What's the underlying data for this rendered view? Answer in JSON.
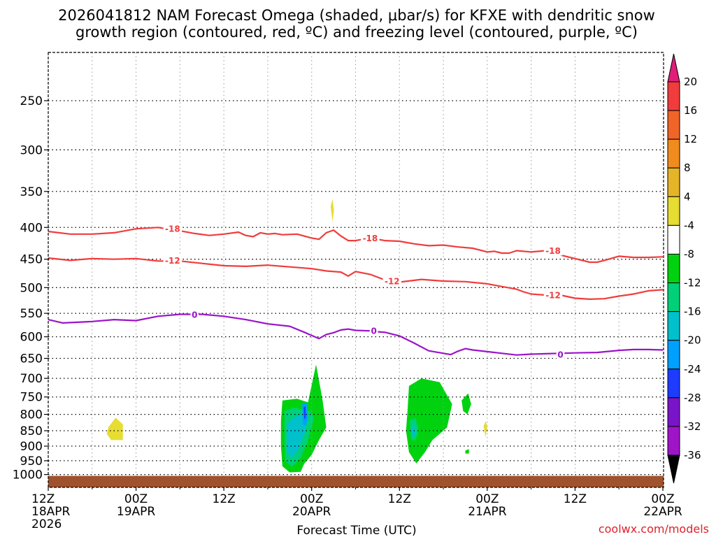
{
  "chart_data": {
    "type": "time-height cross-section",
    "title_line1": "2026041812 NAM Forecast Omega (shaded, μbar/s) for KFXE with dendritic snow",
    "title_line2": "growth region (contoured, red, ºC) and freezing level (contoured, purple, ºC)",
    "xlabel": "Forecast Time (UTC)",
    "credit": "coolwx.com/models",
    "x_ticks": [
      {
        "h": 0,
        "lines": [
          "12Z",
          "18APR",
          "2026"
        ]
      },
      {
        "h": 12,
        "lines": [
          "00Z",
          "19APR"
        ]
      },
      {
        "h": 24,
        "lines": [
          "12Z"
        ]
      },
      {
        "h": 36,
        "lines": [
          "00Z",
          "20APR"
        ]
      },
      {
        "h": 48,
        "lines": [
          "12Z"
        ]
      },
      {
        "h": 60,
        "lines": [
          "00Z",
          "21APR"
        ]
      },
      {
        "h": 72,
        "lines": [
          "12Z"
        ]
      },
      {
        "h": 84,
        "lines": [
          "00Z",
          "22APR"
        ]
      }
    ],
    "x_minor_hours": [
      6,
      18,
      30,
      42,
      54,
      66,
      78
    ],
    "xlim_hours": [
      0,
      84
    ],
    "y_levels_hpa": [
      250,
      300,
      350,
      400,
      450,
      500,
      550,
      600,
      650,
      700,
      750,
      800,
      850,
      900,
      950,
      1000
    ],
    "ylim_hpa": [
      200,
      1020
    ],
    "surface_hpa": 1005,
    "series": [
      {
        "name": "-18C isotherm",
        "label": "-18",
        "color": "#f03c3c",
        "hours": [
          0,
          3,
          6,
          9,
          12,
          15,
          18,
          20,
          22,
          24,
          26,
          27,
          28,
          29,
          30,
          31,
          32,
          34,
          36,
          37,
          38,
          39,
          40,
          41,
          42,
          44,
          45,
          46,
          48,
          50,
          52,
          54,
          56,
          58,
          60,
          61,
          62,
          63,
          64,
          66,
          68,
          69,
          70,
          71,
          72,
          74,
          75,
          76,
          78,
          80,
          82,
          84
        ],
        "hpa": [
          406,
          410,
          410,
          408,
          402,
          400,
          405,
          409,
          412,
          410,
          407,
          412,
          414,
          408,
          410,
          409,
          411,
          410,
          416,
          418,
          408,
          404,
          413,
          420,
          420,
          416,
          418,
          420,
          421,
          425,
          428,
          427,
          430,
          432,
          438,
          437,
          440,
          440,
          436,
          438,
          436,
          440,
          443,
          446,
          449,
          455,
          455,
          452,
          445,
          447,
          447,
          446
        ],
        "label_positions": [
          {
            "h": 17,
            "hpa": 402
          },
          {
            "h": 44,
            "hpa": 416
          },
          {
            "h": 69,
            "hpa": 436
          }
        ]
      },
      {
        "name": "-12C isotherm",
        "label": "-12",
        "color": "#f03c3c",
        "hours": [
          0,
          3,
          6,
          9,
          12,
          15,
          18,
          21,
          24,
          27,
          30,
          33,
          36,
          38,
          40,
          41,
          42,
          44,
          46,
          48,
          51,
          54,
          57,
          60,
          62,
          64,
          65,
          66,
          68,
          69,
          70,
          72,
          74,
          76,
          78,
          80,
          82,
          84
        ],
        "hpa": [
          448,
          452,
          449,
          450,
          449,
          453,
          453,
          457,
          461,
          462,
          460,
          463,
          466,
          470,
          472,
          479,
          471,
          476,
          486,
          490,
          485,
          488,
          489,
          493,
          498,
          503,
          508,
          512,
          514,
          512,
          514,
          520,
          522,
          521,
          516,
          512,
          506,
          504
        ],
        "label_positions": [
          {
            "h": 17,
            "hpa": 452
          },
          {
            "h": 47,
            "hpa": 488
          },
          {
            "h": 69,
            "hpa": 514
          }
        ]
      },
      {
        "name": "freezing level (0C)",
        "label": "0",
        "color": "#9b14c8",
        "hours": [
          0,
          2,
          6,
          9,
          12,
          15,
          18,
          21,
          24,
          27,
          30,
          33,
          35,
          36,
          37,
          38,
          39,
          40,
          41,
          42,
          44,
          45,
          46,
          48,
          50,
          52,
          54,
          55,
          56,
          57,
          58,
          60,
          62,
          64,
          66,
          68,
          70,
          72,
          75,
          78,
          80,
          82,
          84
        ],
        "hpa": [
          563,
          570,
          567,
          563,
          565,
          556,
          552,
          552,
          556,
          563,
          572,
          577,
          590,
          597,
          604,
          595,
          591,
          585,
          583,
          586,
          587,
          589,
          590,
          598,
          614,
          632,
          638,
          641,
          633,
          627,
          630,
          634,
          638,
          642,
          640,
          639,
          638,
          637,
          636,
          631,
          629,
          629,
          630
        ],
        "label_positions": [
          {
            "h": 20,
            "hpa": 553
          },
          {
            "h": 44.5,
            "hpa": 587
          },
          {
            "h": 70,
            "hpa": 641
          }
        ]
      }
    ],
    "omega_areas": [
      {
        "level": "-4 to -8",
        "color": "#00d210",
        "points": [
          [
            32,
            760
          ],
          [
            34,
            755
          ],
          [
            35.5,
            765
          ],
          [
            36.2,
            700
          ],
          [
            36.6,
            665
          ],
          [
            37,
            705
          ],
          [
            37.5,
            760
          ],
          [
            38,
            840
          ],
          [
            37,
            880
          ],
          [
            36,
            930
          ],
          [
            35,
            960
          ],
          [
            34.5,
            990
          ],
          [
            33,
            992
          ],
          [
            32,
            970
          ],
          [
            31.8,
            900
          ],
          [
            31.8,
            820
          ]
        ]
      },
      {
        "level": "-8 to -12",
        "color": "#00d07a",
        "points": [
          [
            32.3,
            790
          ],
          [
            33.8,
            780
          ],
          [
            35,
            790
          ],
          [
            35.8,
            790
          ],
          [
            36.3,
            810
          ],
          [
            35.5,
            880
          ],
          [
            34.5,
            940
          ],
          [
            33.3,
            972
          ],
          [
            32.4,
            950
          ],
          [
            32.3,
            880
          ]
        ]
      },
      {
        "level": "-12 to -16",
        "color": "#00c0cc",
        "points": [
          [
            32.6,
            830
          ],
          [
            33.5,
            810
          ],
          [
            34.5,
            800
          ],
          [
            35.5,
            800
          ],
          [
            35,
            860
          ],
          [
            34,
            920
          ],
          [
            33.2,
            940
          ],
          [
            32.6,
            920
          ]
        ]
      },
      {
        "level": "-16 to -20",
        "color": "#00a0ff",
        "points": [
          [
            34.7,
            770
          ],
          [
            35.3,
            765
          ],
          [
            35.5,
            810
          ],
          [
            35.2,
            835
          ],
          [
            34.8,
            830
          ]
        ]
      },
      {
        "level": "-20 to -24",
        "color": "#1e3cff",
        "points": [
          [
            34.9,
            780
          ],
          [
            35.15,
            776
          ],
          [
            35.2,
            810
          ],
          [
            35.0,
            815
          ]
        ]
      },
      {
        "level": "-4 to -8",
        "color": "#00d210",
        "points": [
          [
            49.3,
            720
          ],
          [
            51,
            700
          ],
          [
            53.5,
            710
          ],
          [
            55.2,
            770
          ],
          [
            54.5,
            840
          ],
          [
            53.5,
            860
          ],
          [
            52.5,
            880
          ],
          [
            51.5,
            920
          ],
          [
            50.3,
            960
          ],
          [
            49.3,
            920
          ],
          [
            48.9,
            850
          ],
          [
            49.1,
            790
          ]
        ]
      },
      {
        "level": "-8 to -12",
        "color": "#00d07a",
        "points": [
          [
            49.4,
            820
          ],
          [
            50.2,
            810
          ],
          [
            50.6,
            850
          ],
          [
            50.2,
            880
          ],
          [
            49.6,
            880
          ]
        ]
      },
      {
        "level": "-12 to -16",
        "color": "#00c0cc",
        "points": [
          [
            49.6,
            840
          ],
          [
            50.0,
            832
          ],
          [
            50.2,
            860
          ],
          [
            49.8,
            868
          ]
        ]
      },
      {
        "level": "-4 to -8",
        "color": "#00d210",
        "points": [
          [
            56.5,
            760
          ],
          [
            57.4,
            740
          ],
          [
            57.8,
            770
          ],
          [
            57.3,
            800
          ],
          [
            56.7,
            790
          ]
        ]
      },
      {
        "level": "-4 to -8",
        "color": "#00d210",
        "points": [
          [
            57.0,
            915
          ],
          [
            57.5,
            910
          ],
          [
            57.5,
            925
          ],
          [
            57.0,
            925
          ]
        ]
      },
      {
        "level": "4 to 8",
        "color": "#e6dc32",
        "points": [
          [
            8.2,
            840
          ],
          [
            9.2,
            810
          ],
          [
            10.2,
            830
          ],
          [
            10.2,
            880
          ],
          [
            8.6,
            880
          ],
          [
            8.0,
            860
          ]
        ]
      },
      {
        "level": "4 to 8",
        "color": "#e6dc32",
        "points": [
          [
            38.6,
            370
          ],
          [
            38.85,
            360
          ],
          [
            39.05,
            375
          ],
          [
            38.85,
            392
          ]
        ]
      },
      {
        "level": "4 to 8",
        "color": "#e6dc32",
        "points": [
          [
            59.5,
            835
          ],
          [
            59.8,
            820
          ],
          [
            60.0,
            840
          ],
          [
            59.75,
            870
          ]
        ]
      }
    ],
    "colorbar": {
      "unit": "μbar/s",
      "levels": [
        20,
        16,
        12,
        8,
        4,
        -4,
        -8,
        -12,
        -16,
        -20,
        -24,
        -28,
        -32,
        -36
      ],
      "colors": [
        "#e01e7a",
        "#f03c3c",
        "#f06428",
        "#f08c1e",
        "#e6b428",
        "#e6dc32",
        "#ffffff",
        "#00d210",
        "#00d07a",
        "#00c0cc",
        "#00a0ff",
        "#1e3cff",
        "#7a14c8",
        "#a014c8",
        "#aaaaaa",
        "#000000"
      ]
    }
  }
}
